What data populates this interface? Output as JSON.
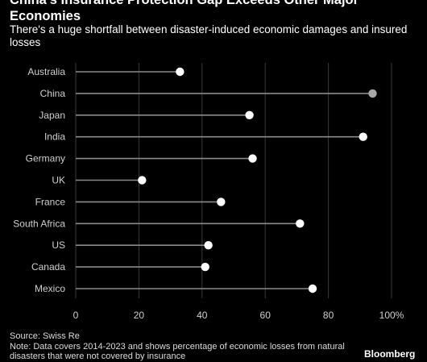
{
  "title": "China's Insurance Protection Gap Exceeds Other Major Economies",
  "subtitle": "There's a huge shortfall between disaster-induced economic damages and insured losses",
  "source": "Source: Swiss Re",
  "note": "Note: Data covers 2014-2023 and shows percentage of economic losses from natural disasters that were not covered by insurance",
  "logo": "Bloomberg",
  "colors": {
    "background": "#000000",
    "dot": "#ffffff",
    "highlight_dot": "#a8a8a8",
    "stem": "#8a8a8a",
    "grid": "#3a3a3a"
  },
  "chart_data": {
    "type": "lollipop",
    "categories": [
      "Australia",
      "China",
      "Japan",
      "India",
      "Germany",
      "UK",
      "France",
      "South Africa",
      "US",
      "Canada",
      "Mexico"
    ],
    "values": [
      33,
      94,
      55,
      91,
      56,
      21,
      46,
      71,
      42,
      41,
      75
    ],
    "highlight": "China",
    "xlim": [
      0,
      100
    ],
    "xticks": [
      0,
      20,
      40,
      60,
      80,
      100
    ],
    "xtick_labels": [
      "0",
      "20",
      "40",
      "60",
      "80",
      "100%"
    ],
    "grid": "vertical"
  }
}
